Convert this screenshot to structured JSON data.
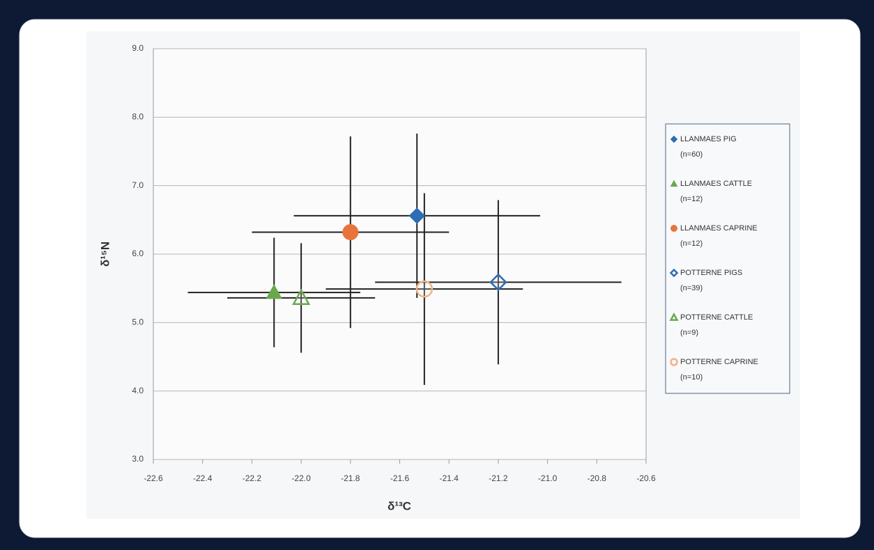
{
  "chart_data": {
    "type": "scatter",
    "x_label": "δ¹³C",
    "y_label": "δ¹⁵N",
    "xlim": [
      -22.6,
      -20.6
    ],
    "xticks": [
      -22.6,
      -22.4,
      -22.2,
      {
        "value": -22.0,
        "label": "-22.0"
      },
      -21.8,
      -21.6,
      -21.4,
      -21.2,
      {
        "value": -21.0,
        "label": "-21.0"
      },
      -20.8,
      -20.6
    ],
    "ylim": [
      3,
      9
    ],
    "yticks": [
      {
        "value": 3,
        "label": "3.0"
      },
      {
        "value": 4,
        "label": "4.0"
      },
      {
        "value": 5,
        "label": "5.0"
      },
      {
        "value": 6,
        "label": "6.0"
      },
      {
        "value": 7,
        "label": "7.0"
      },
      {
        "value": 8,
        "label": "8.0"
      },
      {
        "value": 9,
        "label": "9.0"
      }
    ],
    "grid": true,
    "legend": "right",
    "series": [
      {
        "name": "LLANMAES PIG (n=60)",
        "color": "#2e6db4",
        "marker": "diamond",
        "filled": true,
        "x": [
          -21.53
        ],
        "y": [
          6.56
        ],
        "xerr": [
          0.5
        ],
        "yerr": [
          1.2
        ]
      },
      {
        "name": "LLANMAES CATTLE (n=12)",
        "color": "#6aa84f",
        "marker": "triangle",
        "filled": true,
        "x": [
          -22.11
        ],
        "y": [
          5.44
        ],
        "xerr": [
          0.35
        ],
        "yerr": [
          0.8
        ]
      },
      {
        "name": "LLANMAES CAPRINE (n=12)",
        "color": "#e8743b",
        "marker": "circle",
        "filled": true,
        "x": [
          -21.8
        ],
        "y": [
          6.32
        ],
        "xerr": [
          0.4
        ],
        "yerr": [
          1.4
        ]
      },
      {
        "name": "POTTERNE PIGS (n=39)",
        "color": "#2e6db4",
        "marker": "diamond",
        "filled": false,
        "x": [
          -21.2
        ],
        "y": [
          5.59
        ],
        "xerr": [
          0.5
        ],
        "yerr": [
          1.2
        ]
      },
      {
        "name": "POTTERNE CATTLE (n=9)",
        "color": "#6aa84f",
        "marker": "triangle",
        "filled": false,
        "x": [
          -22.0
        ],
        "y": [
          5.36
        ],
        "xerr": [
          0.3
        ],
        "yerr": [
          0.8
        ]
      },
      {
        "name": "POTTERNE CAPRINE (n=10)",
        "color": "#f4b183",
        "marker": "circle",
        "filled": false,
        "x": [
          -21.5
        ],
        "y": [
          5.49
        ],
        "xerr": [
          0.4
        ],
        "yerr": [
          1.4
        ]
      }
    ]
  }
}
